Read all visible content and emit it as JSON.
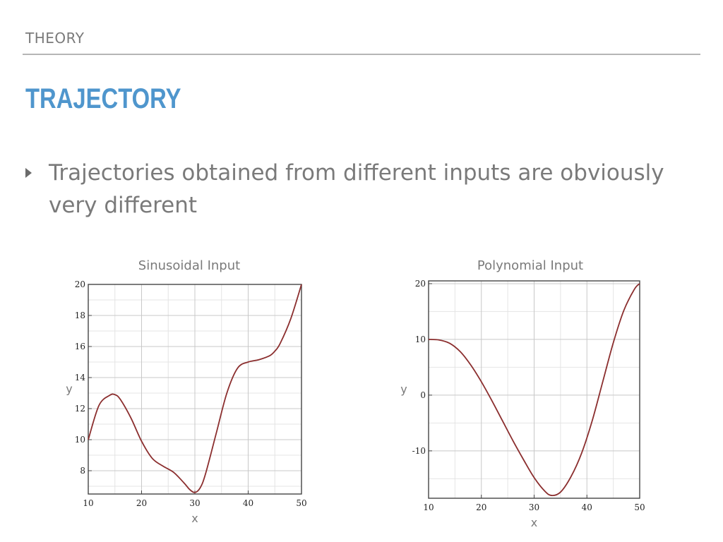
{
  "header": {
    "section": "THEORY",
    "title": "TRAJECTORY"
  },
  "bullets": [
    {
      "text": "Trajectories obtained from different inputs are obviously very different"
    }
  ],
  "colors": {
    "title": "#4f96cd",
    "curve": "#8b2e2e",
    "grid": "#c8c8c8",
    "text": "#7a7a7a"
  },
  "chart_data": [
    {
      "type": "line",
      "title": "Sinusoidal Input",
      "xlabel": "x",
      "ylabel": "y",
      "xlim": [
        10,
        50
      ],
      "ylim": [
        6.5,
        20
      ],
      "xticks": [
        10,
        20,
        30,
        40,
        50
      ],
      "yticks": [
        8,
        10,
        12,
        14,
        16,
        18,
        20
      ],
      "grid": true,
      "series": [
        {
          "x": [
            10,
            12,
            14,
            15,
            16,
            18,
            20,
            22,
            24,
            26,
            28,
            29,
            30,
            31,
            32,
            34,
            36,
            38,
            40,
            42,
            44,
            45,
            46,
            48,
            50
          ],
          "y": [
            10,
            12.2,
            12.85,
            12.9,
            12.6,
            11.4,
            9.9,
            8.8,
            8.3,
            7.9,
            7.2,
            6.8,
            6.6,
            6.9,
            7.8,
            10.4,
            13.0,
            14.6,
            15.0,
            15.15,
            15.4,
            15.7,
            16.2,
            17.8,
            20
          ]
        }
      ]
    },
    {
      "type": "line",
      "title": "Polynomial Input",
      "xlabel": "x",
      "ylabel": "y",
      "xlim": [
        10,
        50
      ],
      "ylim": [
        -18.5,
        20.5
      ],
      "xticks": [
        10,
        20,
        30,
        40,
        50
      ],
      "yticks": [
        -10,
        0,
        10,
        20
      ],
      "grid": true,
      "series": [
        {
          "x": [
            10,
            12,
            14,
            16,
            18,
            20,
            22,
            24,
            26,
            28,
            30,
            32,
            33.3,
            35,
            37,
            39,
            41,
            43,
            45,
            47,
            49,
            50
          ],
          "y": [
            10,
            9.9,
            9.3,
            7.8,
            5.4,
            2.4,
            -1.0,
            -4.6,
            -8.2,
            -11.6,
            -14.8,
            -17.2,
            -18.0,
            -17.4,
            -14.6,
            -10.4,
            -4.6,
            2.4,
            9.4,
            15.2,
            19.0,
            20
          ]
        }
      ]
    }
  ]
}
